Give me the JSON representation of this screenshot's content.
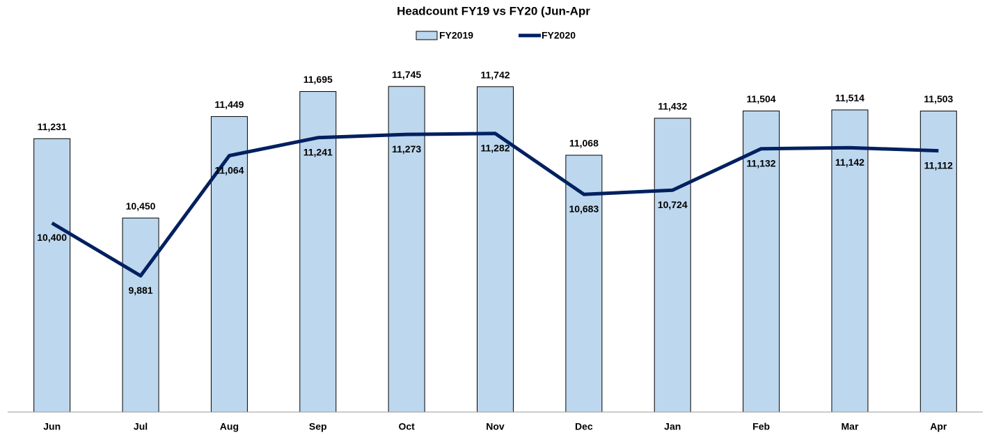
{
  "chart_data": {
    "type": "combo",
    "title": "Headcount FY19 vs FY20 (Jun-Apr",
    "categories": [
      "Jun",
      "Jul",
      "Aug",
      "Sep",
      "Oct",
      "Nov",
      "Dec",
      "Jan",
      "Feb",
      "Mar",
      "Apr"
    ],
    "series": [
      {
        "name": "FY2019",
        "type": "bar",
        "color": "#bdd7ee",
        "values": [
          11231,
          10450,
          11449,
          11695,
          11745,
          11742,
          11068,
          11432,
          11504,
          11514,
          11503
        ],
        "value_labels": [
          "11,231",
          "10,450",
          "11,449",
          "11,695",
          "11,745",
          "11,742",
          "11,068",
          "11,432",
          "11,504",
          "11,514",
          "11,503"
        ]
      },
      {
        "name": "FY2020",
        "type": "line",
        "color": "#002060",
        "values": [
          10400,
          9881,
          11064,
          11241,
          11273,
          11282,
          10683,
          10724,
          11132,
          11142,
          11112
        ],
        "value_labels": [
          "10,400",
          "9,881",
          "11,064",
          "11,241",
          "11,273",
          "11,282",
          "10,683",
          "10,724",
          "11,132",
          "11,142",
          "11,112"
        ]
      }
    ],
    "ylim": [
      8540,
      12000
    ],
    "legend": "top"
  }
}
